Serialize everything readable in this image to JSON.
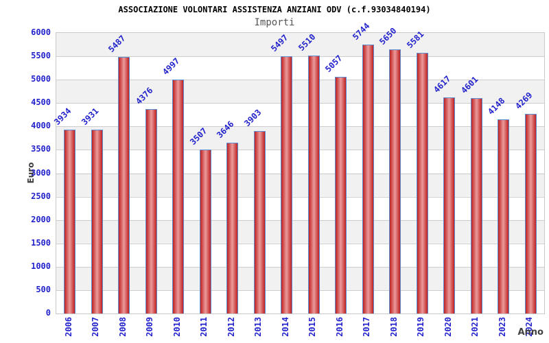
{
  "chart_data": {
    "type": "bar",
    "title": "ASSOCIAZIONE VOLONTARI ASSISTENZA ANZIANI ODV (c.f.93034840194)",
    "subtitle": "Importi",
    "xlabel": "Anno",
    "ylabel": "Euro",
    "categories": [
      "2006",
      "2007",
      "2008",
      "2009",
      "2010",
      "2011",
      "2012",
      "2013",
      "2014",
      "2015",
      "2016",
      "2017",
      "2018",
      "2019",
      "2020",
      "2021",
      "2023",
      "2024"
    ],
    "values": [
      3934,
      3931,
      5487,
      4376,
      4997,
      3507,
      3646,
      3903,
      5497,
      5510,
      5057,
      5744,
      5650,
      5581,
      4617,
      4601,
      4148,
      4269
    ],
    "ylim": [
      0,
      6000
    ],
    "yticks": [
      0,
      500,
      1000,
      1500,
      2000,
      2500,
      3000,
      3500,
      4000,
      4500,
      5000,
      5500,
      6000
    ],
    "grid": "horizontal",
    "legend": "none",
    "colors": {
      "bar_fill_edge": "#bf2222",
      "bar_fill_center": "#eb9b9b",
      "bar_border": "#5b8fd4",
      "label_blue": "#2222cc",
      "axis_title_gray": "#404040",
      "band_gray": "#f1f1f1",
      "band_white": "#ffffff",
      "gridline": "#cdcdcd"
    }
  }
}
